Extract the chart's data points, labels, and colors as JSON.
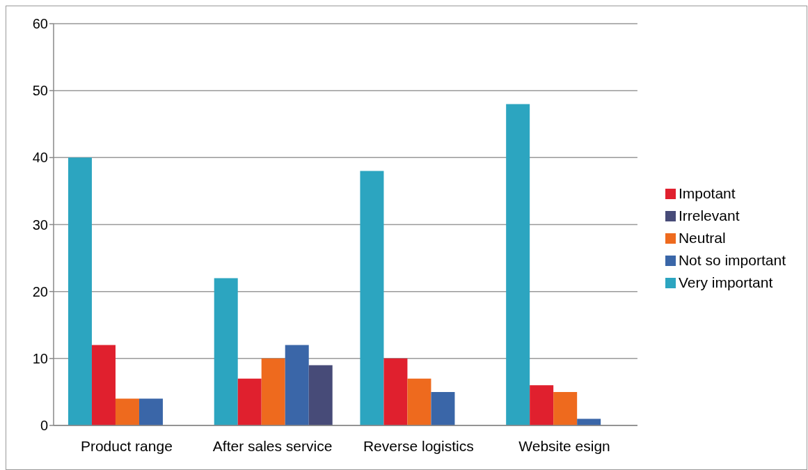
{
  "chart_data": {
    "type": "bar",
    "categories": [
      "Product range",
      "After sales service",
      "Reverse logistics",
      "Website esign"
    ],
    "series": [
      {
        "name": "Very important",
        "color": "#2ca5c0",
        "values": [
          40,
          22,
          38,
          48
        ]
      },
      {
        "name": "Impotant",
        "color": "#e0202e",
        "values": [
          12,
          7,
          10,
          6
        ]
      },
      {
        "name": "Neutral",
        "color": "#ee6a1e",
        "values": [
          4,
          10,
          7,
          5
        ]
      },
      {
        "name": "Not so important",
        "color": "#3a66a8",
        "values": [
          4,
          12,
          5,
          1
        ]
      },
      {
        "name": "Irrelevant",
        "color": "#474b78",
        "values": [
          null,
          9,
          null,
          null
        ]
      }
    ],
    "ylim": [
      0,
      60
    ],
    "yticks": [
      0,
      10,
      20,
      30,
      40,
      50,
      60
    ],
    "grid": "y",
    "legend": "right"
  }
}
